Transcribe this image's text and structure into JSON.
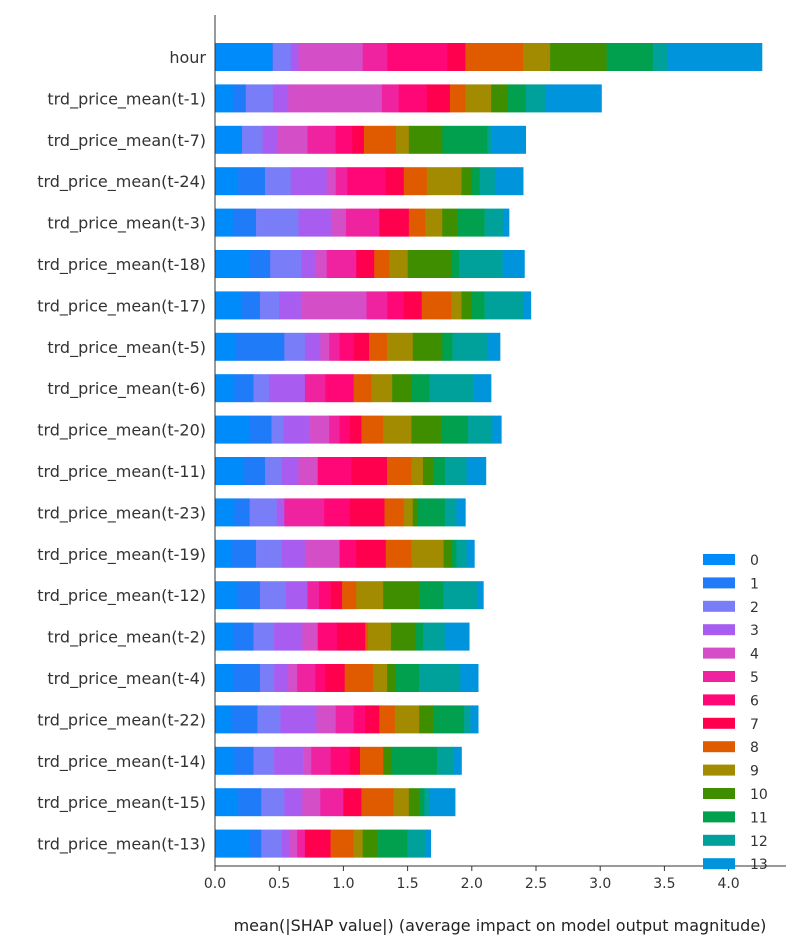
{
  "chart_data": {
    "type": "bar",
    "orientation": "horizontal",
    "stacked": true,
    "title": "",
    "xlabel": "mean(|SHAP value|) (average impact on model output magnitude)",
    "ylabel": "",
    "xlim": [
      0,
      4.4
    ],
    "xticks": [
      "0.0",
      "0.5",
      "1.0",
      "1.5",
      "2.0",
      "2.5",
      "3.0",
      "3.5",
      "4.0"
    ],
    "legend_position": "bottom-right",
    "grid": false,
    "categories": [
      "hour",
      "trd_price_mean(t-1)",
      "trd_price_mean(t-7)",
      "trd_price_mean(t-24)",
      "trd_price_mean(t-3)",
      "trd_price_mean(t-18)",
      "trd_price_mean(t-17)",
      "trd_price_mean(t-5)",
      "trd_price_mean(t-6)",
      "trd_price_mean(t-20)",
      "trd_price_mean(t-11)",
      "trd_price_mean(t-23)",
      "trd_price_mean(t-19)",
      "trd_price_mean(t-12)",
      "trd_price_mean(t-2)",
      "trd_price_mean(t-4)",
      "trd_price_mean(t-22)",
      "trd_price_mean(t-14)",
      "trd_price_mean(t-15)",
      "trd_price_mean(t-13)"
    ],
    "series": [
      {
        "name": "0",
        "color": "#008bfb",
        "values": [
          0.44,
          0.14,
          0.21,
          0.18,
          0.14,
          0.27,
          0.21,
          0.16,
          0.15,
          0.27,
          0.22,
          0.15,
          0.13,
          0.17,
          0.14,
          0.14,
          0.13,
          0.15,
          0.18,
          0.27
        ]
      },
      {
        "name": "1",
        "color": "#1f7bf7",
        "values": [
          0.01,
          0.1,
          0.0,
          0.21,
          0.18,
          0.16,
          0.14,
          0.38,
          0.15,
          0.17,
          0.17,
          0.12,
          0.19,
          0.18,
          0.16,
          0.21,
          0.2,
          0.15,
          0.18,
          0.09
        ]
      },
      {
        "name": "2",
        "color": "#7a7df8",
        "values": [
          0.14,
          0.21,
          0.16,
          0.2,
          0.33,
          0.24,
          0.15,
          0.16,
          0.12,
          0.09,
          0.13,
          0.21,
          0.2,
          0.2,
          0.16,
          0.11,
          0.18,
          0.16,
          0.18,
          0.16
        ]
      },
      {
        "name": "3",
        "color": "#a85df0",
        "values": [
          0.06,
          0.12,
          0.12,
          0.28,
          0.26,
          0.11,
          0.17,
          0.12,
          0.28,
          0.21,
          0.13,
          0.06,
          0.18,
          0.17,
          0.22,
          0.11,
          0.28,
          0.23,
          0.14,
          0.06
        ]
      },
      {
        "name": "4",
        "color": "#d44ec8",
        "values": [
          0.5,
          0.73,
          0.23,
          0.07,
          0.11,
          0.09,
          0.51,
          0.07,
          0.0,
          0.15,
          0.15,
          0.0,
          0.27,
          0.0,
          0.12,
          0.07,
          0.15,
          0.06,
          0.14,
          0.06
        ]
      },
      {
        "name": "5",
        "color": "#ef22a0",
        "values": [
          0.19,
          0.13,
          0.22,
          0.09,
          0.26,
          0.23,
          0.16,
          0.08,
          0.16,
          0.08,
          0.0,
          0.31,
          0.0,
          0.09,
          0.0,
          0.14,
          0.14,
          0.15,
          0.18,
          0.06
        ]
      },
      {
        "name": "6",
        "color": "#ff0776",
        "values": [
          0.47,
          0.22,
          0.13,
          0.3,
          0.0,
          0.0,
          0.13,
          0.11,
          0.22,
          0.08,
          0.26,
          0.2,
          0.13,
          0.09,
          0.15,
          0.08,
          0.09,
          0.15,
          0.0,
          0.0
        ]
      },
      {
        "name": "7",
        "color": "#ff004f",
        "values": [
          0.14,
          0.18,
          0.09,
          0.14,
          0.23,
          0.14,
          0.14,
          0.12,
          0.0,
          0.09,
          0.28,
          0.27,
          0.23,
          0.09,
          0.22,
          0.15,
          0.11,
          0.08,
          0.14,
          0.2
        ]
      },
      {
        "name": "8",
        "color": "#e05b00",
        "values": [
          0.45,
          0.12,
          0.25,
          0.18,
          0.13,
          0.12,
          0.23,
          0.14,
          0.14,
          0.17,
          0.19,
          0.15,
          0.2,
          0.11,
          0.02,
          0.22,
          0.12,
          0.18,
          0.25,
          0.18
        ]
      },
      {
        "name": "9",
        "color": "#a28b00",
        "values": [
          0.21,
          0.2,
          0.1,
          0.27,
          0.13,
          0.14,
          0.08,
          0.2,
          0.16,
          0.22,
          0.09,
          0.07,
          0.25,
          0.21,
          0.18,
          0.11,
          0.19,
          0.0,
          0.12,
          0.07
        ]
      },
      {
        "name": "10",
        "color": "#3e8e00",
        "values": [
          0.44,
          0.13,
          0.26,
          0.08,
          0.12,
          0.34,
          0.08,
          0.23,
          0.15,
          0.23,
          0.08,
          0.04,
          0.06,
          0.28,
          0.19,
          0.07,
          0.11,
          0.06,
          0.08,
          0.12
        ]
      },
      {
        "name": "11",
        "color": "#00a04f",
        "values": [
          0.36,
          0.14,
          0.35,
          0.06,
          0.21,
          0.06,
          0.1,
          0.08,
          0.14,
          0.21,
          0.09,
          0.21,
          0.04,
          0.19,
          0.06,
          0.18,
          0.24,
          0.36,
          0.04,
          0.23
        ]
      },
      {
        "name": "12",
        "color": "#00a09b",
        "values": [
          0.11,
          0.15,
          0.03,
          0.12,
          0.15,
          0.34,
          0.3,
          0.27,
          0.34,
          0.19,
          0.17,
          0.09,
          0.08,
          0.26,
          0.17,
          0.32,
          0.05,
          0.13,
          0.04,
          0.14
        ]
      },
      {
        "name": "13",
        "color": "#0094dc",
        "values": [
          0.74,
          0.44,
          0.27,
          0.22,
          0.04,
          0.17,
          0.06,
          0.1,
          0.14,
          0.07,
          0.15,
          0.07,
          0.06,
          0.05,
          0.19,
          0.14,
          0.06,
          0.06,
          0.2,
          0.04
        ]
      }
    ]
  }
}
